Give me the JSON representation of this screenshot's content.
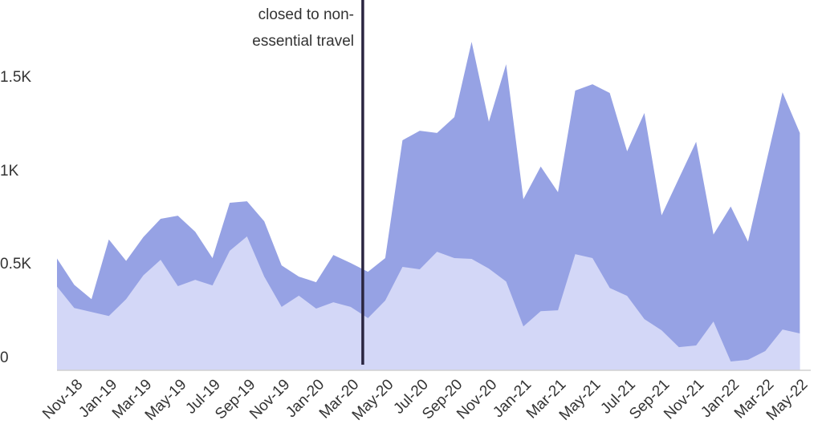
{
  "chart_data": {
    "type": "area",
    "stacked": false,
    "title": "",
    "xlabel": "",
    "ylabel": "",
    "ylim": [
      0,
      1800
    ],
    "grid": false,
    "legend": null,
    "y_ticks": [
      {
        "value": 0,
        "label": "0"
      },
      {
        "value": 500,
        "label": "0.5K"
      },
      {
        "value": 1000,
        "label": "1K"
      },
      {
        "value": 1500,
        "label": "1.5K"
      }
    ],
    "x_tick_labels": [
      "Nov-18",
      "Jan-19",
      "Mar-19",
      "May-19",
      "Jul-19",
      "Sep-19",
      "Nov-19",
      "Jan-20",
      "Mar-20",
      "May-20",
      "Jul-20",
      "Sep-20",
      "Nov-20",
      "Jan-21",
      "Mar-21",
      "May-21",
      "Jul-21",
      "Sep-21",
      "Nov-21",
      "Jan-22",
      "Mar-22",
      "May-22"
    ],
    "x": [
      "Nov-18",
      "Dec-18",
      "Jan-19",
      "Feb-19",
      "Mar-19",
      "Apr-19",
      "May-19",
      "Jun-19",
      "Jul-19",
      "Aug-19",
      "Sep-19",
      "Oct-19",
      "Nov-19",
      "Dec-19",
      "Jan-20",
      "Feb-20",
      "Mar-20",
      "Apr-20",
      "May-20",
      "Jun-20",
      "Jul-20",
      "Aug-20",
      "Sep-20",
      "Oct-20",
      "Nov-20",
      "Dec-20",
      "Jan-21",
      "Feb-21",
      "Mar-21",
      "Apr-21",
      "May-21",
      "Jun-21",
      "Jul-21",
      "Aug-21",
      "Sep-21",
      "Oct-21",
      "Nov-21",
      "Dec-21",
      "Jan-22",
      "Feb-22",
      "Mar-22",
      "Apr-22",
      "May-22",
      "Jun-22"
    ],
    "series": [
      {
        "name": "Total",
        "color": "#96A2E4",
        "values": [
          598,
          457,
          380,
          700,
          585,
          713,
          810,
          827,
          741,
          600,
          896,
          904,
          797,
          561,
          501,
          471,
          617,
          574,
          527,
          600,
          1230,
          1281,
          1269,
          1354,
          1757,
          1329,
          1637,
          915,
          1090,
          953,
          1496,
          1530,
          1483,
          1171,
          1376,
          829,
          1026,
          1222,
          726,
          876,
          688,
          1090,
          1487,
          1269
        ]
      },
      {
        "name": "Subset",
        "color": "#D3D7F7",
        "values": [
          448,
          333,
          312,
          290,
          380,
          508,
          591,
          450,
          484,
          454,
          639,
          716,
          501,
          339,
          399,
          330,
          364,
          339,
          279,
          373,
          553,
          540,
          634,
          600,
          596,
          544,
          475,
          235,
          316,
          321,
          621,
          600,
          440,
          398,
          274,
          214,
          124,
          133,
          261,
          47,
          56,
          103,
          218,
          197
        ]
      }
    ],
    "annotations": [
      {
        "x_index": 17.7,
        "type": "vertical-line",
        "color": "#2A2540",
        "text_lines": [
          "closed to non-",
          "essential travel"
        ]
      }
    ]
  }
}
